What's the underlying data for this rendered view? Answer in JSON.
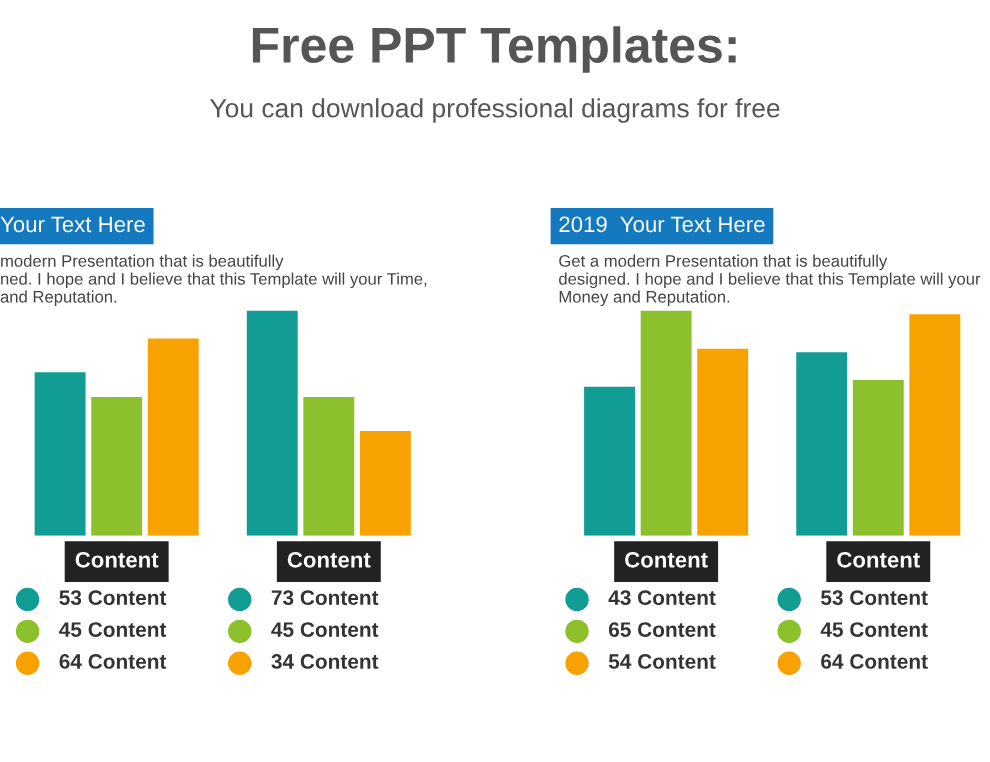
{
  "chart_data": [
    {
      "type": "bar",
      "title": "Your Text Here",
      "subtitle": "modern Presentation that is beautifully\nned. I hope and I believe that this Template will your Time,\nand Reputation.",
      "categories": [
        "Content",
        "Content"
      ],
      "annotations": [
        "Free PPT Templates:",
        "You can download professional diagrams for free"
      ],
      "series": [
        {
          "color": "#129d94",
          "values": [
            53,
            73
          ],
          "value_labels": [
            "53 Content",
            "73 Content"
          ]
        },
        {
          "color": "#8cc02c",
          "values": [
            45,
            45
          ],
          "value_labels": [
            "45 Content",
            "45 Content"
          ]
        },
        {
          "color": "#f7a200",
          "values": [
            64,
            34
          ],
          "value_labels": [
            "64 Content",
            "34 Content"
          ]
        }
      ],
      "legend": false
    },
    {
      "type": "bar",
      "title": "2019  Your Text Here",
      "subtitle": "Get a modern Presentation that is beautifully\ndesigned. I hope and I believe that this Template will your\nMoney and Reputation.",
      "categories": [
        "Content",
        "Content"
      ],
      "series": [
        {
          "color": "#129d94",
          "values": [
            43,
            53
          ],
          "value_labels": [
            "43 Content",
            "53 Content"
          ]
        },
        {
          "color": "#8cc02c",
          "values": [
            65,
            45
          ],
          "value_labels": [
            "65 Content",
            "45 Content"
          ]
        },
        {
          "color": "#f7a200",
          "values": [
            54,
            64
          ],
          "value_labels": [
            "54 Content",
            "64 Content"
          ]
        }
      ],
      "legend": false
    }
  ]
}
